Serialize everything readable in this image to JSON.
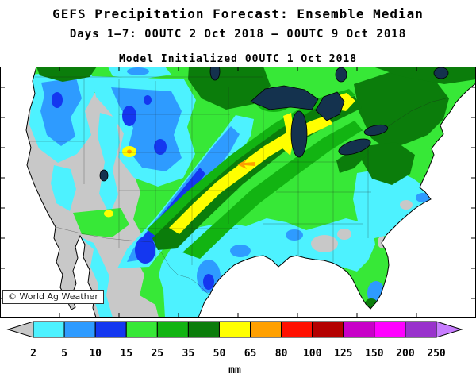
{
  "header": {
    "title": "GEFS Precipitation Forecast: Ensemble Median",
    "subtitle": "Days 1–7: 00UTC 2 Oct 2018 – 00UTC 9 Oct 2018",
    "initialized": "Model Initialized 00UTC 1 Oct 2018"
  },
  "map": {
    "watermark": "© World Ag Weather"
  },
  "colorbar": {
    "unit": "mm",
    "ticks": [
      "2",
      "5",
      "10",
      "15",
      "25",
      "35",
      "50",
      "65",
      "80",
      "100",
      "125",
      "150",
      "200",
      "250"
    ],
    "colors": [
      "#c8c8c8",
      "#4df2ff",
      "#2e9bff",
      "#1437f0",
      "#37e837",
      "#12b412",
      "#0b7d0b",
      "#ffff00",
      "#ffa000",
      "#ff1000",
      "#b40000",
      "#c800c8",
      "#ff00ff",
      "#9932cc",
      "#c87dff"
    ]
  },
  "palette": {
    "ocean": "#ffffff",
    "gray": "#c8c8c8",
    "cyan": "#4df2ff",
    "blue": "#2e9bff",
    "blue_dark": "#1437f0",
    "green": "#37e837",
    "green_med": "#12b412",
    "green_dark": "#0b7d0b",
    "yellow": "#ffff00",
    "orange": "#ffa000",
    "lake": "#14324e",
    "line": "#000000"
  }
}
